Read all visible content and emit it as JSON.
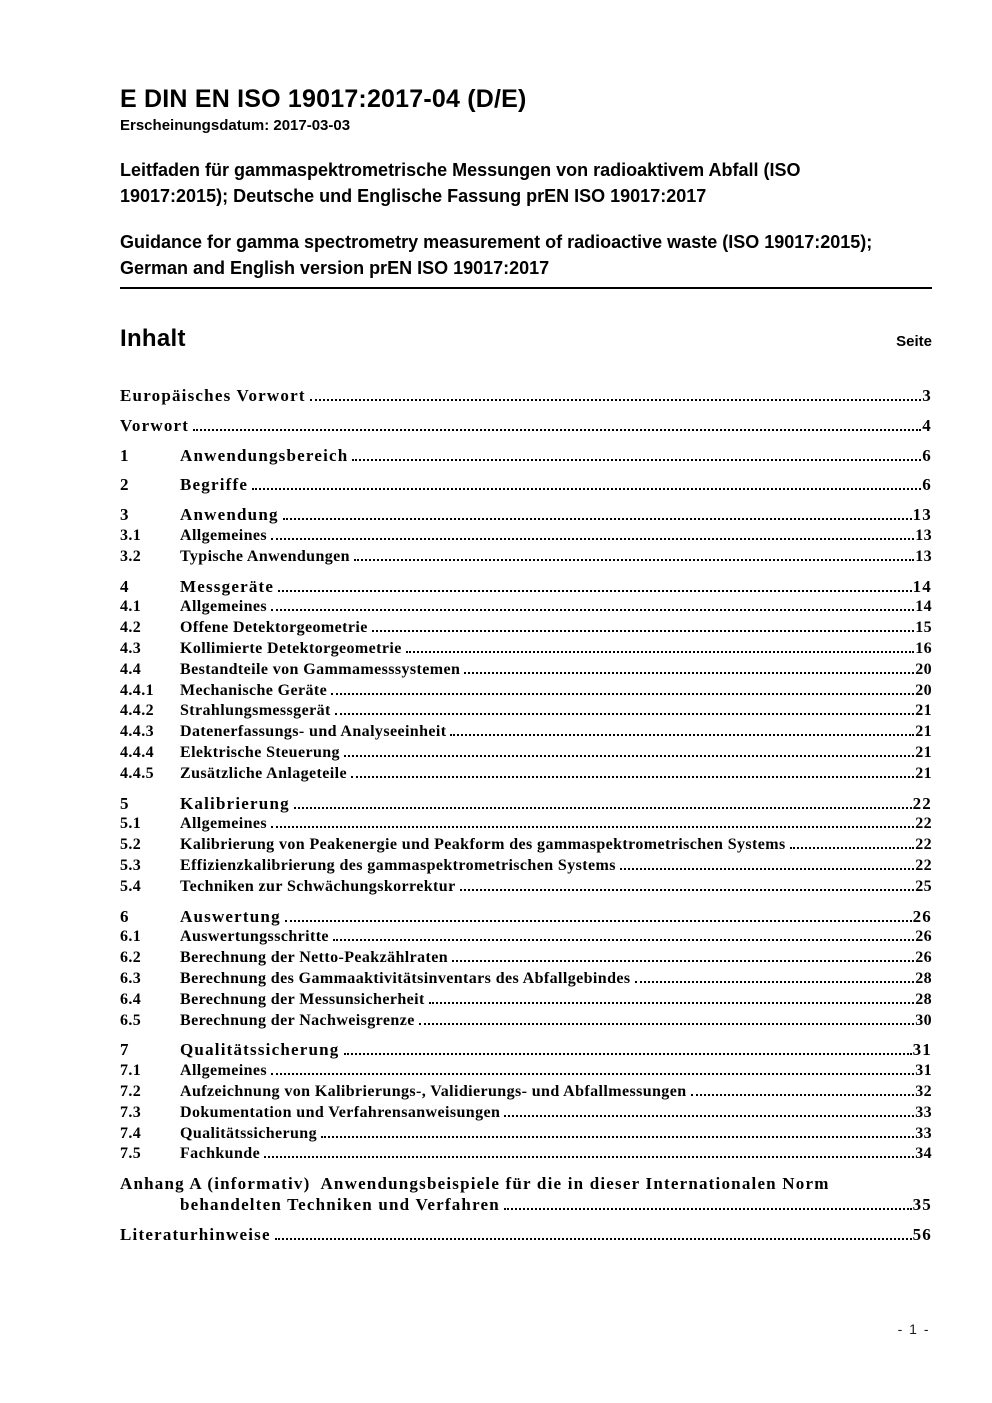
{
  "header": {
    "doc_code": "E DIN EN ISO 19017:2017-04 (D/E)",
    "publish_line": "Erscheinungsdatum: 2017-03-03",
    "title_de": "Leitfaden für gammaspektrometrische Messungen von radioaktivem Abfall (ISO 19017:2015); Deutsche und Englische Fassung prEN ISO 19017:2017",
    "title_en": "Guidance for gamma spectrometry measurement of radioactive waste (ISO 19017:2015); German and English version prEN ISO 19017:2017"
  },
  "toc": {
    "heading": "Inhalt",
    "page_col_label": "Seite",
    "entries": [
      {
        "num": "",
        "label": "Europäisches Vorwort",
        "page": "3",
        "lvl": 1,
        "gap": false
      },
      {
        "num": "",
        "label": "Vorwort",
        "page": "4",
        "lvl": 1,
        "gap": true
      },
      {
        "num": "1",
        "label": "Anwendungsbereich",
        "page": "6",
        "lvl": 1,
        "gap": true
      },
      {
        "num": "2",
        "label": "Begriffe",
        "page": "6",
        "lvl": 1,
        "gap": true
      },
      {
        "num": "3",
        "label": "Anwendung",
        "page": "13",
        "lvl": 1,
        "gap": true
      },
      {
        "num": "3.1",
        "label": "Allgemeines",
        "page": "13",
        "lvl": 2,
        "gap": false
      },
      {
        "num": "3.2",
        "label": "Typische Anwendungen",
        "page": "13",
        "lvl": 2,
        "gap": false
      },
      {
        "num": "4",
        "label": "Messgeräte",
        "page": "14",
        "lvl": 1,
        "gap": true
      },
      {
        "num": "4.1",
        "label": "Allgemeines",
        "page": "14",
        "lvl": 2,
        "gap": false
      },
      {
        "num": "4.2",
        "label": "Offene Detektorgeometrie",
        "page": "15",
        "lvl": 2,
        "gap": false
      },
      {
        "num": "4.3",
        "label": "Kollimierte Detektorgeometrie",
        "page": "16",
        "lvl": 2,
        "gap": false
      },
      {
        "num": "4.4",
        "label": "Bestandteile von Gammamesssystemen",
        "page": "20",
        "lvl": 2,
        "gap": false
      },
      {
        "num": "4.4.1",
        "label": "Mechanische Geräte",
        "page": "20",
        "lvl": 2,
        "gap": false
      },
      {
        "num": "4.4.2",
        "label": "Strahlungsmessgerät",
        "page": "21",
        "lvl": 2,
        "gap": false
      },
      {
        "num": "4.4.3",
        "label": "Datenerfassungs- und Analyseeinheit",
        "page": "21",
        "lvl": 2,
        "gap": false
      },
      {
        "num": "4.4.4",
        "label": "Elektrische Steuerung",
        "page": "21",
        "lvl": 2,
        "gap": false
      },
      {
        "num": "4.4.5",
        "label": "Zusätzliche Anlageteile",
        "page": "21",
        "lvl": 2,
        "gap": false
      },
      {
        "num": "5",
        "label": "Kalibrierung",
        "page": "22",
        "lvl": 1,
        "gap": true
      },
      {
        "num": "5.1",
        "label": "Allgemeines",
        "page": "22",
        "lvl": 2,
        "gap": false
      },
      {
        "num": "5.2",
        "label": "Kalibrierung von Peakenergie und Peakform des gammaspektrometrischen Systems",
        "page": "22",
        "lvl": 2,
        "gap": false
      },
      {
        "num": "5.3",
        "label": "Effizienzkalibrierung des gammaspektrometrischen Systems",
        "page": "22",
        "lvl": 2,
        "gap": false
      },
      {
        "num": "5.4",
        "label": "Techniken zur Schwächungskorrektur",
        "page": "25",
        "lvl": 2,
        "gap": false
      },
      {
        "num": "6",
        "label": "Auswertung",
        "page": "26",
        "lvl": 1,
        "gap": true
      },
      {
        "num": "6.1",
        "label": "Auswertungsschritte",
        "page": "26",
        "lvl": 2,
        "gap": false
      },
      {
        "num": "6.2",
        "label": "Berechnung der Netto-Peakzählraten",
        "page": "26",
        "lvl": 2,
        "gap": false
      },
      {
        "num": "6.3",
        "label": "Berechnung des Gammaaktivitätsinventars des Abfallgebindes",
        "page": "28",
        "lvl": 2,
        "gap": false
      },
      {
        "num": "6.4",
        "label": "Berechnung der Messunsicherheit",
        "page": "28",
        "lvl": 2,
        "gap": false
      },
      {
        "num": "6.5",
        "label": "Berechnung der Nachweisgrenze",
        "page": "30",
        "lvl": 2,
        "gap": false
      },
      {
        "num": "7",
        "label": "Qualitätssicherung",
        "page": "31",
        "lvl": 1,
        "gap": true
      },
      {
        "num": "7.1",
        "label": "Allgemeines",
        "page": "31",
        "lvl": 2,
        "gap": false
      },
      {
        "num": "7.2",
        "label": "Aufzeichnung von Kalibrierungs-, Validierungs- und Abfallmessungen",
        "page": "32",
        "lvl": 2,
        "gap": false
      },
      {
        "num": "7.3",
        "label": "Dokumentation und Verfahrensanweisungen",
        "page": "33",
        "lvl": 2,
        "gap": false
      },
      {
        "num": "7.4",
        "label": "Qualitätssicherung",
        "page": "33",
        "lvl": 2,
        "gap": false
      },
      {
        "num": "7.5",
        "label": "Fachkunde",
        "page": "34",
        "lvl": 2,
        "gap": false
      },
      {
        "num": "",
        "label": "Anhang A (informativ)  Anwendungsbeispiele für die in dieser Internationalen Norm",
        "label2": "behandelten Techniken und Verfahren",
        "page": "35",
        "lvl": 1,
        "gap": true
      },
      {
        "num": "",
        "label": "Literaturhinweise",
        "page": "56",
        "lvl": 1,
        "gap": true
      }
    ]
  },
  "footer": {
    "page_number": "- 1 -"
  }
}
